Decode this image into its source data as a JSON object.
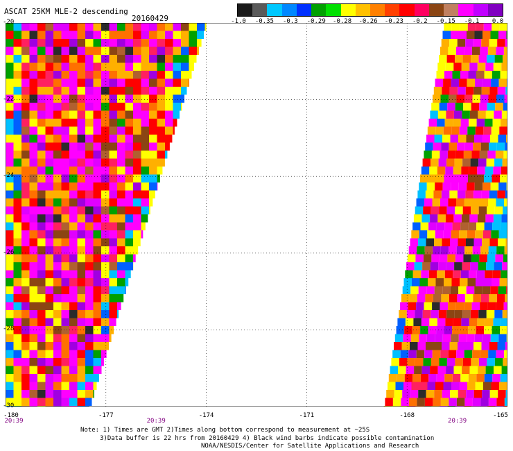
{
  "header": {
    "title": "ASCAT 25KM MLE-2 descending",
    "date": "20160429"
  },
  "colorbar": {
    "colors": [
      "#1a1a1a",
      "#5a5a5a",
      "#00c8ff",
      "#0088ff",
      "#0030ff",
      "#00a000",
      "#00e000",
      "#ffff00",
      "#ffc000",
      "#ff8000",
      "#ff4000",
      "#ff0000",
      "#ff0060",
      "#8b4513",
      "#c08060",
      "#ff00ff",
      "#c000ff",
      "#8000c0"
    ],
    "labels": [
      "-1.0",
      "-0.35",
      "-0.3",
      "-0.29",
      "-0.28",
      "-0.26",
      "-0.23",
      "-0.2",
      "-0.15",
      "-0.1",
      "0.0"
    ]
  },
  "map": {
    "lon_range": [
      -180,
      -165
    ],
    "lat_range": [
      -30,
      -20
    ],
    "lat_labels": [
      "-20",
      "-22",
      "-24",
      "-26",
      "-28",
      "-30"
    ],
    "lon_labels": [
      "-180",
      "-177",
      "-174",
      "-171",
      "-168",
      "-165"
    ],
    "time_labels": [
      {
        "lon": -180,
        "text": "20:39"
      },
      {
        "lon": -175.5,
        "text": "20:39"
      },
      {
        "lon": -166.5,
        "text": "20:39"
      }
    ],
    "palette": [
      "#2b2b2b",
      "#00c0ff",
      "#0060ff",
      "#00a000",
      "#ffff00",
      "#ffb000",
      "#ff7000",
      "#ff0000",
      "#ff2060",
      "#8b4513",
      "#b06030",
      "#ff00ff",
      "#e000ff",
      "#a000e0"
    ],
    "swaths": [
      {
        "name": "western-swath",
        "lat_top": -20,
        "lat_bottom": -30,
        "west_top": -180,
        "east_top": -174,
        "west_bottom": -180,
        "east_bottom": -177.5
      },
      {
        "name": "eastern-swath",
        "lat_top": -20,
        "lat_bottom": -30,
        "west_top": -166.9,
        "east_top": -165,
        "west_bottom": -168.7,
        "east_bottom": -165
      }
    ]
  },
  "notes": [
    "Note: 1) Times are GMT 2)Times along bottom correspond to measurement at ~25S",
    "3)Data buffer is 22 hrs from 20160429 4) Black wind barbs indicate possible contamination",
    "NOAA/NESDIS/Center for Satellite Applications and Research"
  ]
}
